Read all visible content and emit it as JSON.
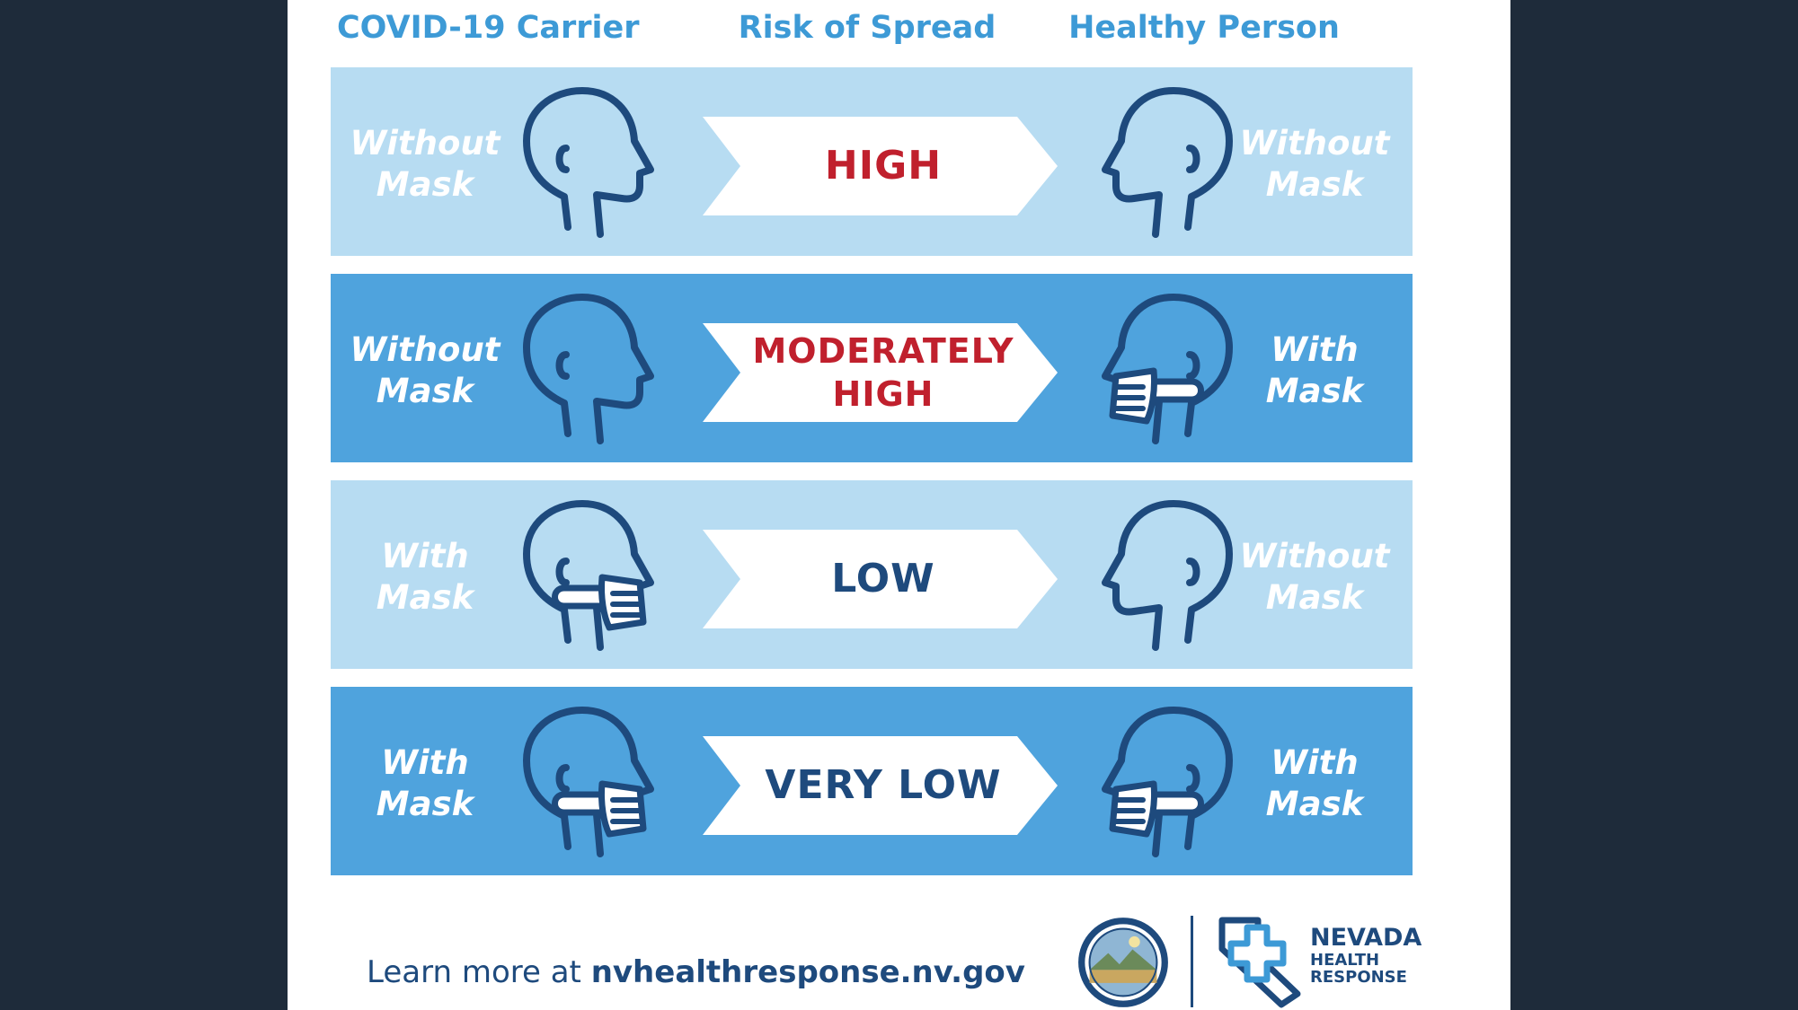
{
  "columns": {
    "carrier": "COVID-19 Carrier",
    "risk": "Risk of Spread",
    "healthy": "Healthy Person"
  },
  "rows": [
    {
      "carrier_line1": "Without",
      "carrier_line2": "Mask",
      "carrier_mask": false,
      "risk_line1": "HIGH",
      "risk_line2": "",
      "risk_color": "#c0202d",
      "healthy_line1": "Without",
      "healthy_line2": "Mask",
      "healthy_mask": false
    },
    {
      "carrier_line1": "Without",
      "carrier_line2": "Mask",
      "carrier_mask": false,
      "risk_line1": "MODERATELY",
      "risk_line2": "HIGH",
      "risk_color": "#c0202d",
      "healthy_line1": "With",
      "healthy_line2": "Mask",
      "healthy_mask": true
    },
    {
      "carrier_line1": "With",
      "carrier_line2": "Mask",
      "carrier_mask": true,
      "risk_line1": "LOW",
      "risk_line2": "",
      "risk_color": "#1e4a7d",
      "healthy_line1": "Without",
      "healthy_line2": "Mask",
      "healthy_mask": false
    },
    {
      "carrier_line1": "With",
      "carrier_line2": "Mask",
      "carrier_mask": true,
      "risk_line1": "VERY LOW",
      "risk_line2": "",
      "risk_color": "#1e4a7d",
      "healthy_line1": "With",
      "healthy_line2": "Mask",
      "healthy_mask": true
    }
  ],
  "footer": {
    "prefix": "Learn more at ",
    "url": "nvhealthresponse.nv.gov",
    "brand_line1": "NEVADA",
    "brand_line2": "HEALTH",
    "brand_line3": "RESPONSE"
  },
  "icons": {
    "head": "head-profile-icon",
    "seal": "nevada-state-seal-icon",
    "logo": "nevada-health-response-logo-icon"
  },
  "colors": {
    "page_bg": "#1e2b3a",
    "row_light": "#b7dcf2",
    "row_dark": "#4fa3dd",
    "header_text": "#3d9ad6",
    "outline": "#1e4a7d",
    "risk_high": "#c0202d",
    "risk_low": "#1e4a7d"
  }
}
